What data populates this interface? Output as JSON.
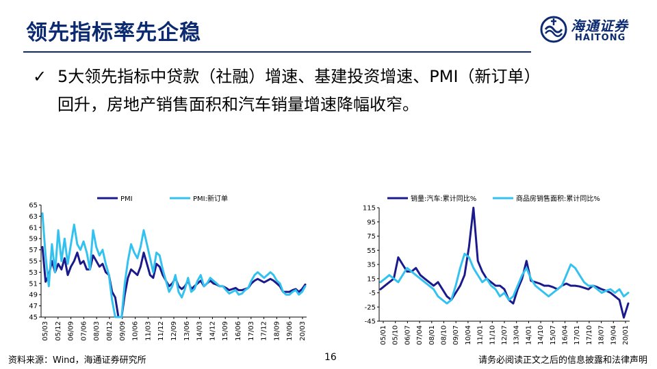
{
  "header": {
    "title": "领先指标率先企稳",
    "logo_cn": "海通证券",
    "logo_en": "HAITONG"
  },
  "bullet": {
    "line1": "5大领先指标中贷款（社融）增速、基建投资增速、PMI（新订单）",
    "line2": "回升，房地产销售面积和汽车销量增速降幅收窄。",
    "check_icon": "checkmark-icon"
  },
  "footer": {
    "source": "资料来源：Wind，海通证券研究所",
    "page": "16",
    "disclaimer": "请务必阅读正文之后的信息披露和法律声明"
  },
  "colors": {
    "navy": "#0b2a70",
    "series_dark": "#1a1a8c",
    "series_light": "#33c2f0"
  },
  "chart_data": [
    {
      "type": "line",
      "series": [
        {
          "name": "PMI",
          "color": "#1a1a8c",
          "values": [
            57.5,
            51.3,
            52.5,
            55.0,
            53.0,
            54.5,
            53.5,
            55.5,
            52.5,
            54.0,
            55.0,
            56.5,
            54.5,
            55.0,
            53.5,
            53.5,
            56.0,
            55.0,
            54.0,
            54.5,
            53.0,
            52.5,
            49.5,
            48.5,
            45.0,
            44.8,
            49.0,
            52.0,
            53.5,
            53.0,
            52.5,
            54.0,
            56.5,
            54.5,
            52.5,
            52.0,
            54.5,
            54.0,
            52.5,
            51.5,
            50.5,
            51.0,
            52.0,
            50.5,
            50.0,
            50.5,
            51.5,
            50.0,
            50.5,
            51.0,
            51.5,
            50.5,
            51.0,
            51.5,
            51.0,
            50.8,
            50.5,
            50.5,
            50.2,
            49.8,
            50.0,
            50.2,
            49.8,
            49.8,
            50.0,
            50.2,
            51.0,
            51.5,
            51.8,
            51.5,
            51.2,
            51.5,
            51.8,
            51.5,
            51.0,
            50.5,
            49.5,
            49.5,
            49.5,
            49.8,
            50.0,
            49.5,
            50.0,
            50.8
          ]
        },
        {
          "name": "PMI:新订单",
          "color": "#33c2f0",
          "values": [
            63.5,
            56.0,
            50.5,
            58.0,
            53.0,
            60.5,
            55.0,
            59.0,
            54.5,
            58.0,
            61.5,
            58.0,
            57.0,
            58.5,
            56.5,
            53.5,
            60.5,
            57.5,
            56.0,
            57.0,
            54.5,
            52.5,
            48.0,
            44.5,
            41.5,
            45.0,
            51.0,
            55.0,
            58.0,
            56.5,
            55.5,
            57.5,
            60.5,
            58.0,
            55.5,
            53.0,
            56.5,
            56.0,
            53.5,
            51.5,
            49.5,
            50.5,
            52.5,
            49.5,
            48.5,
            50.0,
            52.0,
            49.5,
            50.0,
            51.5,
            52.5,
            50.5,
            51.0,
            52.0,
            51.5,
            51.0,
            50.5,
            50.5,
            49.8,
            49.2,
            49.5,
            49.8,
            49.0,
            49.2,
            49.8,
            50.2,
            51.5,
            52.5,
            53.0,
            52.5,
            52.0,
            52.5,
            53.0,
            52.5,
            51.5,
            51.0,
            49.5,
            49.0,
            49.0,
            49.5,
            49.8,
            49.0,
            49.5,
            50.5
          ]
        }
      ],
      "x_ticks": [
        "05/03",
        "05/12",
        "06/09",
        "07/06",
        "08/03",
        "08/12",
        "09/09",
        "10/06",
        "11/03",
        "11/12",
        "12/09",
        "13/06",
        "14/03",
        "14/12",
        "15/09",
        "16/06",
        "17/03",
        "17/12",
        "18/09",
        "19/06",
        "20/03"
      ],
      "y_ticks": [
        "65",
        "63",
        "61",
        "59",
        "57",
        "55",
        "53",
        "51",
        "49",
        "47",
        "45"
      ],
      "ylim": [
        45,
        65
      ],
      "legend": "top"
    },
    {
      "type": "line",
      "series": [
        {
          "name": "销量:汽车:累计同比%",
          "color": "#1a1a8c",
          "values": [
            0,
            5,
            10,
            15,
            45,
            35,
            25,
            25,
            30,
            20,
            15,
            10,
            5,
            10,
            0,
            -10,
            -15,
            -5,
            5,
            20,
            60,
            120,
            40,
            25,
            15,
            10,
            5,
            5,
            0,
            -15,
            -20,
            0,
            15,
            40,
            12,
            10,
            8,
            5,
            5,
            3,
            0,
            5,
            8,
            5,
            5,
            4,
            2,
            0,
            5,
            3,
            0,
            -2,
            -5,
            -10,
            -15,
            -40,
            -20
          ]
        },
        {
          "name": "商品房销售面积:累计同比%",
          "color": "#33c2f0",
          "values": [
            10,
            15,
            20,
            15,
            10,
            20,
            30,
            25,
            20,
            15,
            10,
            5,
            0,
            -10,
            -15,
            -20,
            -15,
            5,
            30,
            50,
            45,
            30,
            20,
            10,
            15,
            5,
            0,
            -10,
            -5,
            -15,
            -10,
            5,
            20,
            30,
            15,
            5,
            0,
            -5,
            -10,
            -5,
            0,
            5,
            20,
            35,
            30,
            20,
            10,
            5,
            5,
            0,
            -5,
            -2,
            0,
            -5,
            0,
            -10,
            -5
          ]
        }
      ],
      "x_ticks": [
        "05/01",
        "05/10",
        "06/07",
        "07/04",
        "08/01",
        "08/10",
        "09/07",
        "10/04",
        "11/01",
        "11/10",
        "12/07",
        "13/04",
        "14/01",
        "14/10",
        "15/07",
        "16/04",
        "17/01",
        "17/10",
        "18/07",
        "19/04",
        "20/01"
      ],
      "y_ticks": [
        "115",
        "95",
        "75",
        "55",
        "35",
        "15",
        "-5",
        "-25",
        "-45"
      ],
      "ylim": [
        -45,
        115
      ],
      "legend": "top"
    }
  ]
}
